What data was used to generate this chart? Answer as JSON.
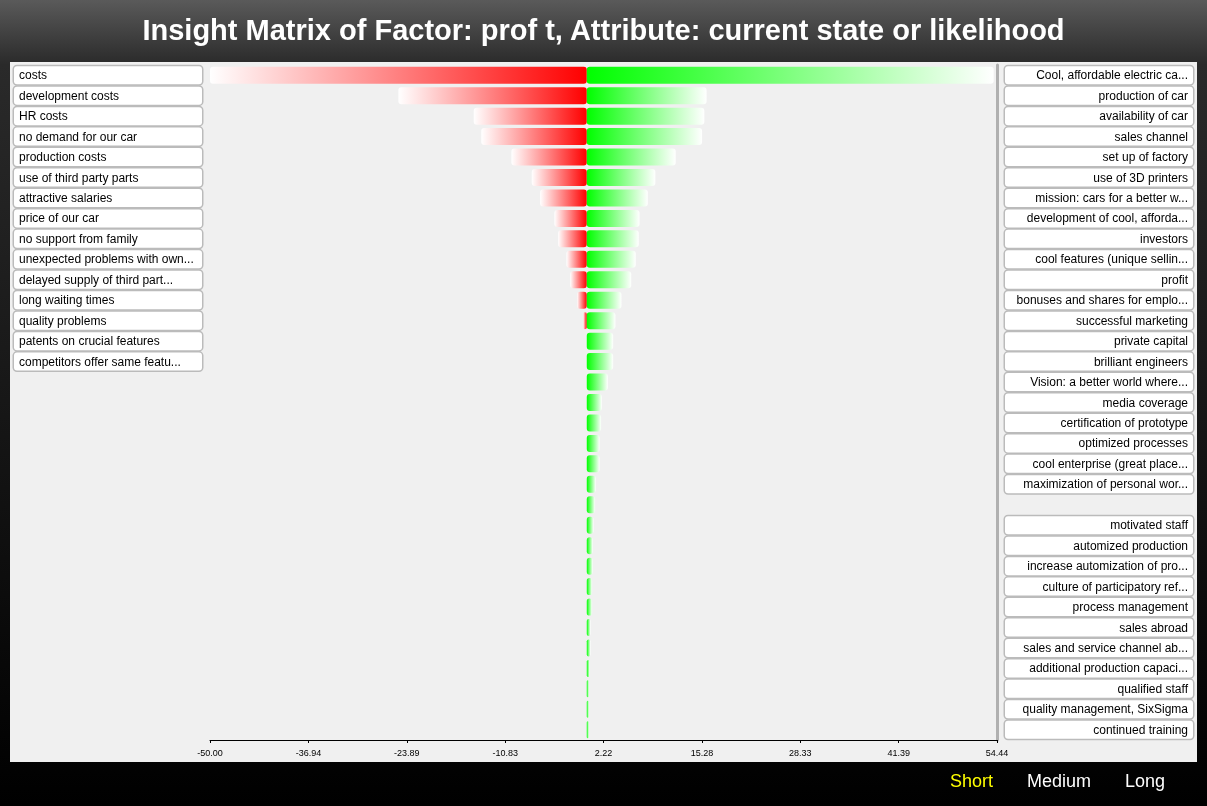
{
  "chart_data": {
    "type": "bar",
    "orientation": "horizontal",
    "title": "Insight Matrix of Factor: prof t, Attribute: current state or likelihood",
    "categories": [
      "costs",
      "development costs",
      "HR costs",
      "no demand for our car",
      "production costs",
      "use of third party parts",
      "attractive salaries",
      "price of our car",
      "no support from family",
      "unexpected problems with own...",
      "delayed supply of third part...",
      "long waiting times",
      "quality problems",
      "patents on crucial features",
      "competitors offer same featu...",
      null,
      null,
      null,
      null,
      null,
      null,
      null,
      null,
      null,
      null,
      null,
      null,
      null,
      null,
      null,
      null,
      null,
      null
    ],
    "y2_categories": [
      "Cool, affordable electric ca...",
      "production of car",
      "availability of car",
      "sales channel",
      "set up of factory",
      "use of 3D printers",
      "mission: cars for a better w...",
      "development of cool, afforda...",
      "investors",
      "cool features (unique sellin...",
      "profit",
      "bonuses and shares for emplo...",
      "successful marketing",
      "private capital",
      "brilliant engineers",
      "Vision: a better world where...",
      "media coverage",
      "certification of prototype",
      "optimized processes",
      "cool enterprise (great place...",
      "maximization of personal wor...",
      null,
      "motivated staff",
      "automized production",
      "increase automization of pro...",
      "culture of participatory ref...",
      "process management",
      "sales abroad",
      "sales and service channel ab...",
      "additional production capaci...",
      "qualified staff",
      "quality management, SixSigma",
      "continued training"
    ],
    "series": [
      {
        "color": "#ff0000",
        "values": [
          -50,
          -25,
          -15,
          -14,
          -10,
          -7.3,
          -6.2,
          -4.3,
          -3.8,
          -2.7,
          -2.2,
          -1.3,
          -0.5,
          0,
          0,
          null,
          null,
          null,
          null,
          null,
          null,
          null,
          null,
          null,
          null,
          null,
          null,
          null,
          null,
          null,
          null,
          null,
          null
        ]
      },
      {
        "color": "#00ff00",
        "values": [
          54,
          15.9,
          15.6,
          15.3,
          11.8,
          9.1,
          8.1,
          7,
          6.9,
          6.5,
          5.9,
          4.6,
          3.8,
          3.5,
          3.5,
          2.8,
          2,
          1.9,
          1.7,
          1.7,
          1.2,
          1.1,
          0.9,
          0.8,
          0.8,
          0.7,
          0.7,
          0.5,
          0.5,
          0.4,
          0.3,
          0.3,
          0.3
        ]
      }
    ],
    "xlim": [
      -50,
      54.44
    ],
    "xticks": [
      {
        "value": -50,
        "label": "-50.00"
      },
      -36.94,
      -23.89,
      -10.83,
      2.22,
      15.28,
      28.33,
      41.39,
      54.44
    ],
    "grid": false,
    "annotations": [
      "Short",
      "Medium",
      "Long"
    ]
  }
}
